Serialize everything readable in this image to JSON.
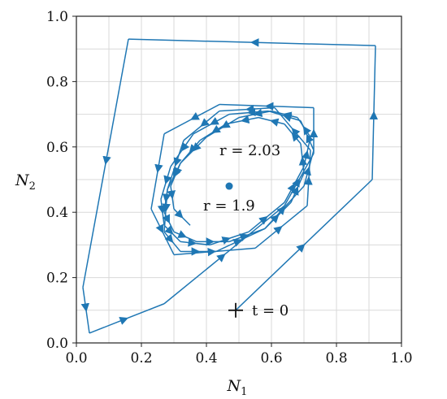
{
  "chart_data": {
    "type": "line",
    "xlabel": "N",
    "xlabel_sub": "1",
    "ylabel": "N",
    "ylabel_sub": "2",
    "xlim": [
      0,
      1
    ],
    "ylim": [
      0,
      1
    ],
    "xticks": [
      "0.0",
      "0.2",
      "0.4",
      "0.6",
      "0.8",
      "1.0"
    ],
    "yticks": [
      "0.0",
      "0.2",
      "0.4",
      "0.6",
      "0.8",
      "1.0"
    ],
    "grid": true,
    "color": "#1f77b4",
    "series": [
      {
        "x": [
          0.49,
          0.91,
          0.92,
          0.16,
          0.02,
          0.04,
          0.27,
          0.64,
          0.73,
          0.73,
          0.44,
          0.27,
          0.23,
          0.3,
          0.55,
          0.71,
          0.72,
          0.61,
          0.44,
          0.33,
          0.28,
          0.27,
          0.32,
          0.43,
          0.58,
          0.7,
          0.73,
          0.69,
          0.59,
          0.47,
          0.36,
          0.29,
          0.26,
          0.27,
          0.32,
          0.41,
          0.53,
          0.64,
          0.7,
          0.72,
          0.68,
          0.6,
          0.5,
          0.4,
          0.32,
          0.28,
          0.27,
          0.3,
          0.37,
          0.47,
          0.58,
          0.66,
          0.7,
          0.69,
          0.64,
          0.56,
          0.46,
          0.38,
          0.32,
          0.29,
          0.3,
          0.35
        ],
        "y": [
          0.1,
          0.5,
          0.91,
          0.93,
          0.17,
          0.03,
          0.12,
          0.42,
          0.58,
          0.72,
          0.73,
          0.64,
          0.41,
          0.27,
          0.29,
          0.42,
          0.59,
          0.72,
          0.71,
          0.62,
          0.47,
          0.34,
          0.28,
          0.28,
          0.35,
          0.48,
          0.59,
          0.68,
          0.71,
          0.7,
          0.64,
          0.54,
          0.44,
          0.36,
          0.31,
          0.3,
          0.34,
          0.43,
          0.54,
          0.63,
          0.69,
          0.71,
          0.69,
          0.63,
          0.55,
          0.47,
          0.4,
          0.34,
          0.31,
          0.31,
          0.35,
          0.43,
          0.52,
          0.61,
          0.67,
          0.69,
          0.67,
          0.62,
          0.55,
          0.48,
          0.41,
          0.36
        ]
      }
    ],
    "equilibrium": {
      "x": 0.47,
      "y": 0.48
    },
    "start": {
      "x": 0.49,
      "y": 0.1
    },
    "annotations": [
      {
        "text": "r = 2.03",
        "x": 0.44,
        "y": 0.59
      },
      {
        "text": "r = 1.9",
        "x": 0.39,
        "y": 0.42
      },
      {
        "text": "t = 0",
        "x": 0.54,
        "y": 0.1
      }
    ]
  }
}
